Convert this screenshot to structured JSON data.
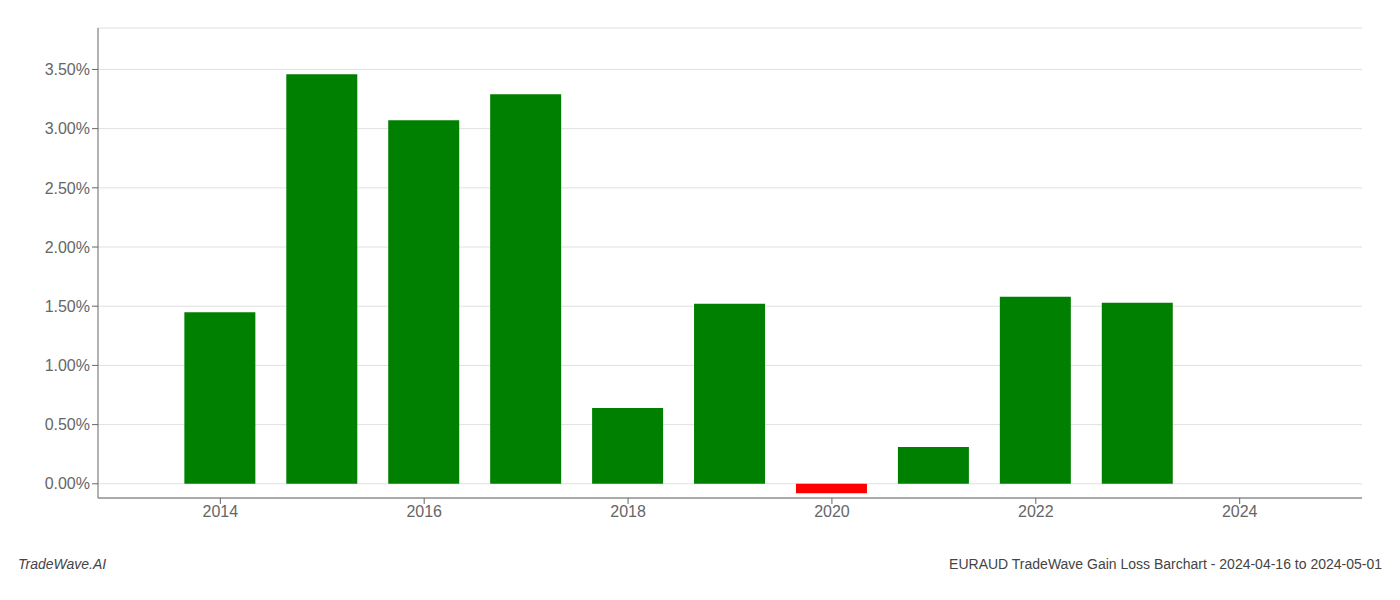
{
  "chart_data": {
    "type": "bar",
    "title": "EURAUD TradeWave Gain Loss Barchart - 2024-04-16 to 2024-05-01",
    "annotations": [
      "TradeWave.AI"
    ],
    "x": [
      2014,
      2015,
      2016,
      2017,
      2018,
      2019,
      2020,
      2021,
      2022,
      2023
    ],
    "values": [
      0.0145,
      0.0346,
      0.0307,
      0.0329,
      0.0064,
      0.0152,
      -0.0008,
      0.0031,
      0.0158,
      0.0153
    ],
    "colors": [
      "#008000",
      "#008000",
      "#008000",
      "#008000",
      "#008000",
      "#008000",
      "#ff0000",
      "#008000",
      "#008000",
      "#008000"
    ],
    "xlim": [
      2012.8,
      2025.2
    ],
    "xticks": [
      2014,
      2016,
      2018,
      2020,
      2022,
      2024
    ],
    "ylim": [
      -0.0012,
      0.0385
    ],
    "yticks": [
      {
        "value": 0.0,
        "label": "0.00%"
      },
      {
        "value": 0.005,
        "label": "0.50%"
      },
      {
        "value": 0.01,
        "label": "1.00%"
      },
      {
        "value": 0.015,
        "label": "1.50%"
      },
      {
        "value": 0.02,
        "label": "2.00%"
      },
      {
        "value": 0.025,
        "label": "2.50%"
      },
      {
        "value": 0.03,
        "label": "3.00%"
      },
      {
        "value": 0.035,
        "label": "3.50%"
      }
    ],
    "grid": true
  }
}
